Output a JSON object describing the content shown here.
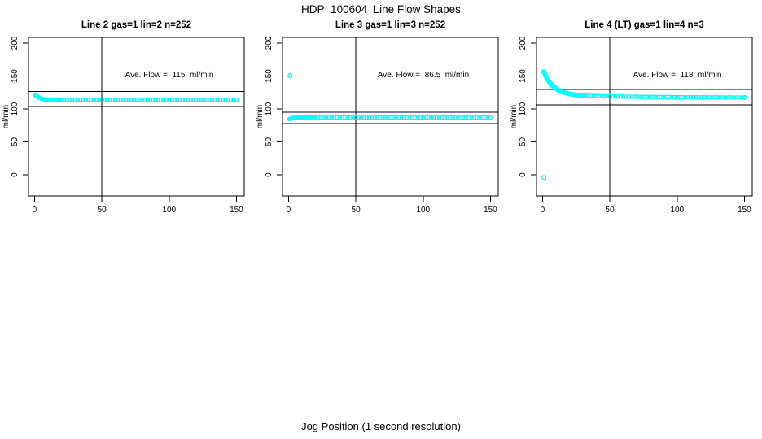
{
  "figure": {
    "title": "HDP_100604  Line Flow Shapes",
    "xlabel": "Jog Position (1 second resolution)",
    "background_color": "#ffffff",
    "axis_color": "#000000",
    "point_color": "#00ffff"
  },
  "chart_data": [
    {
      "type": "scatter",
      "title": "Line 2 gas=1 lin=2 n=252",
      "annotation": "Ave. Flow =  115  ml/min",
      "ave_flow": 115,
      "ylabel": "ml/min",
      "xticks": [
        0,
        50,
        100,
        150
      ],
      "yticks": [
        0,
        50,
        100,
        150,
        200
      ],
      "xlim": [
        -4.5,
        155.8
      ],
      "ylim": [
        -32,
        208.6
      ],
      "vline_x": 50,
      "hlines": [
        126.5,
        103.5
      ],
      "annotation_pos": {
        "x": 100,
        "y": 150
      },
      "points": [
        [
          0.5,
          120.5
        ],
        [
          1,
          119.8
        ],
        [
          1.5,
          119.2
        ],
        [
          2,
          118.7
        ],
        [
          2.5,
          118.2
        ],
        [
          3,
          117.6
        ],
        [
          3.5,
          117.1
        ],
        [
          4,
          116.6
        ],
        [
          4.5,
          116.2
        ],
        [
          5,
          115.8
        ],
        [
          5.5,
          115.4
        ],
        [
          6,
          115.1
        ],
        [
          6.5,
          114.9
        ],
        [
          7,
          114.7
        ],
        [
          7.5,
          114.5
        ],
        [
          8,
          114.4
        ],
        [
          9,
          114.3
        ],
        [
          10,
          114.2
        ],
        [
          11,
          114.1
        ],
        [
          12,
          114
        ],
        [
          13,
          114.1
        ],
        [
          14,
          113.9
        ],
        [
          15,
          114
        ],
        [
          16,
          114.1
        ],
        [
          17,
          113.9
        ],
        [
          18,
          114
        ],
        [
          19,
          114.1
        ],
        [
          20,
          113.9
        ],
        [
          22,
          114
        ],
        [
          24,
          114.1
        ],
        [
          26,
          113.9
        ],
        [
          28,
          114
        ],
        [
          30,
          114.1
        ],
        [
          32,
          113.9
        ],
        [
          34,
          114
        ],
        [
          36,
          114.1
        ],
        [
          38,
          113.9
        ],
        [
          40,
          114
        ],
        [
          42,
          114.1
        ],
        [
          44,
          113.9
        ],
        [
          46,
          114
        ],
        [
          48,
          114.1
        ],
        [
          50,
          113.9
        ],
        [
          52,
          114
        ],
        [
          54,
          114.1
        ],
        [
          56,
          113.9
        ],
        [
          58,
          114
        ],
        [
          60,
          114.1
        ],
        [
          62,
          113.9
        ],
        [
          64,
          114
        ],
        [
          66,
          114.1
        ],
        [
          68,
          113.9
        ],
        [
          70,
          114
        ],
        [
          72,
          114.1
        ],
        [
          74,
          113.9
        ],
        [
          76,
          114
        ],
        [
          78,
          114.1
        ],
        [
          80,
          113.9
        ],
        [
          82,
          114
        ],
        [
          84,
          114.1
        ],
        [
          86,
          113.9
        ],
        [
          88,
          114
        ],
        [
          90,
          114.1
        ],
        [
          92,
          113.9
        ],
        [
          94,
          114
        ],
        [
          96,
          114.1
        ],
        [
          98,
          113.9
        ],
        [
          100,
          114
        ],
        [
          102,
          114.1
        ],
        [
          104,
          113.9
        ],
        [
          106,
          114
        ],
        [
          108,
          114.1
        ],
        [
          110,
          113.9
        ],
        [
          112,
          114
        ],
        [
          114,
          114.1
        ],
        [
          116,
          113.9
        ],
        [
          118,
          114
        ],
        [
          120,
          114.1
        ],
        [
          122,
          113.9
        ],
        [
          124,
          114
        ],
        [
          126,
          114.1
        ],
        [
          128,
          113.9
        ],
        [
          130,
          114
        ],
        [
          132,
          114.1
        ],
        [
          134,
          113.9
        ],
        [
          136,
          114
        ],
        [
          138,
          114.1
        ],
        [
          140,
          113.9
        ],
        [
          142,
          114
        ],
        [
          144,
          114.1
        ],
        [
          146,
          113.9
        ],
        [
          148,
          114
        ],
        [
          150,
          114
        ]
      ],
      "outliers": []
    },
    {
      "type": "scatter",
      "title": "Line 3 gas=1 lin=3 n=252",
      "annotation": "Ave. Flow =  86.5  ml/min",
      "ave_flow": 86.5,
      "ylabel": "ml/min",
      "xticks": [
        0,
        50,
        100,
        150
      ],
      "yticks": [
        0,
        50,
        100,
        150,
        200
      ],
      "xlim": [
        -4.5,
        155.8
      ],
      "ylim": [
        -32,
        208.6
      ],
      "vline_x": 50,
      "hlines": [
        95.2,
        77.9
      ],
      "annotation_pos": {
        "x": 100,
        "y": 150
      },
      "points": [
        [
          0.5,
          84.6
        ],
        [
          1,
          85.2
        ],
        [
          1.5,
          84.9
        ],
        [
          2,
          85.8
        ],
        [
          2.5,
          86.3
        ],
        [
          3,
          86.6
        ],
        [
          3.5,
          86.8
        ],
        [
          4,
          86.9
        ],
        [
          5,
          87
        ],
        [
          6,
          87.1
        ],
        [
          7,
          86.9
        ],
        [
          8,
          87
        ],
        [
          9,
          87.1
        ],
        [
          10,
          86.9
        ],
        [
          11,
          87
        ],
        [
          12,
          87.1
        ],
        [
          13,
          86.9
        ],
        [
          14,
          87
        ],
        [
          15,
          87.1
        ],
        [
          16,
          86.9
        ],
        [
          17,
          87
        ],
        [
          18,
          87.1
        ],
        [
          19,
          86.9
        ],
        [
          20,
          87
        ],
        [
          22,
          87
        ],
        [
          24,
          87.1
        ],
        [
          26,
          86.9
        ],
        [
          28,
          87
        ],
        [
          30,
          87.1
        ],
        [
          32,
          86.9
        ],
        [
          34,
          87
        ],
        [
          36,
          87.1
        ],
        [
          38,
          86.9
        ],
        [
          40,
          87
        ],
        [
          42,
          87.1
        ],
        [
          44,
          86.9
        ],
        [
          46,
          87
        ],
        [
          48,
          87.1
        ],
        [
          50,
          86.9
        ],
        [
          52,
          87
        ],
        [
          54,
          87.1
        ],
        [
          56,
          86.9
        ],
        [
          58,
          87
        ],
        [
          60,
          87.1
        ],
        [
          62,
          86.9
        ],
        [
          64,
          87
        ],
        [
          66,
          87.1
        ],
        [
          68,
          86.9
        ],
        [
          70,
          87
        ],
        [
          72,
          87.1
        ],
        [
          74,
          86.9
        ],
        [
          76,
          87
        ],
        [
          78,
          87.1
        ],
        [
          80,
          86.9
        ],
        [
          82,
          87
        ],
        [
          84,
          87.1
        ],
        [
          86,
          86.9
        ],
        [
          88,
          87
        ],
        [
          90,
          87.1
        ],
        [
          92,
          86.9
        ],
        [
          94,
          87
        ],
        [
          96,
          87.1
        ],
        [
          98,
          86.9
        ],
        [
          100,
          87
        ],
        [
          102,
          87.1
        ],
        [
          104,
          86.9
        ],
        [
          106,
          87
        ],
        [
          108,
          87.1
        ],
        [
          110,
          86.9
        ],
        [
          112,
          87
        ],
        [
          114,
          87.1
        ],
        [
          116,
          86.9
        ],
        [
          118,
          87
        ],
        [
          120,
          87.1
        ],
        [
          122,
          86.9
        ],
        [
          124,
          87
        ],
        [
          126,
          87.1
        ],
        [
          128,
          86.9
        ],
        [
          130,
          87
        ],
        [
          132,
          87.1
        ],
        [
          134,
          86.9
        ],
        [
          136,
          87
        ],
        [
          138,
          87.1
        ],
        [
          140,
          86.9
        ],
        [
          142,
          87
        ],
        [
          144,
          87.1
        ],
        [
          146,
          86.9
        ],
        [
          148,
          87
        ],
        [
          150,
          87
        ]
      ],
      "outliers": [
        [
          1,
          150.5
        ]
      ]
    },
    {
      "type": "scatter",
      "title": "Line 4 (LT) gas=1 lin=4 n=3",
      "annotation": "Ave. Flow =  118  ml/min",
      "ave_flow": 118,
      "ylabel": "ml/min",
      "xticks": [
        0,
        50,
        100,
        150
      ],
      "yticks": [
        0,
        50,
        100,
        150,
        200
      ],
      "xlim": [
        -4.5,
        155.8
      ],
      "ylim": [
        -32,
        208.6
      ],
      "vline_x": 50,
      "hlines": [
        129.8,
        106.2
      ],
      "annotation_pos": {
        "x": 100,
        "y": 150
      },
      "points": [
        [
          0.5,
          156.2
        ],
        [
          1,
          155.5
        ],
        [
          1.5,
          154.3
        ],
        [
          2,
          150.9
        ],
        [
          2.5,
          148.8
        ],
        [
          3,
          146.9
        ],
        [
          3.5,
          145.1
        ],
        [
          4,
          143.4
        ],
        [
          4.5,
          141.8
        ],
        [
          5,
          140.4
        ],
        [
          5.5,
          139
        ],
        [
          6,
          137.8
        ],
        [
          6.5,
          136.6
        ],
        [
          7,
          135.5
        ],
        [
          7.5,
          134.5
        ],
        [
          8,
          133.5
        ],
        [
          8.5,
          132.6
        ],
        [
          9,
          131.8
        ],
        [
          9.5,
          131
        ],
        [
          10,
          130.3
        ],
        [
          11,
          129
        ],
        [
          12,
          127.8
        ],
        [
          13,
          126.8
        ],
        [
          14,
          125.9
        ],
        [
          15,
          125.2
        ],
        [
          16,
          124.5
        ],
        [
          17,
          123.9
        ],
        [
          18,
          123.4
        ],
        [
          19,
          122.9
        ],
        [
          20,
          122.5
        ],
        [
          21,
          122.2
        ],
        [
          22,
          121.9
        ],
        [
          23,
          121.6
        ],
        [
          24,
          121.4
        ],
        [
          25,
          121.1
        ],
        [
          26,
          120.9
        ],
        [
          27,
          120.8
        ],
        [
          28,
          120.6
        ],
        [
          29,
          120.5
        ],
        [
          30,
          120.3
        ],
        [
          32,
          120.1
        ],
        [
          34,
          119.9
        ],
        [
          36,
          119.8
        ],
        [
          38,
          119.6
        ],
        [
          40,
          119.5
        ],
        [
          42,
          119.4
        ],
        [
          44,
          119.2
        ],
        [
          46,
          119.1
        ],
        [
          48,
          119.1
        ],
        [
          50,
          119
        ],
        [
          52,
          118.9
        ],
        [
          54,
          118.9
        ],
        [
          56,
          118.8
        ],
        [
          58,
          118.7
        ],
        [
          60,
          118.7
        ],
        [
          62,
          118.6
        ],
        [
          64,
          118.6
        ],
        [
          66,
          118.5
        ],
        [
          68,
          118.5
        ],
        [
          70,
          118.4
        ],
        [
          72,
          118.4
        ],
        [
          74,
          118.3
        ],
        [
          76,
          118.3
        ],
        [
          78,
          118.2
        ],
        [
          80,
          118.2
        ],
        [
          82,
          118.2
        ],
        [
          84,
          118.1
        ],
        [
          86,
          118.1
        ],
        [
          88,
          118.1
        ],
        [
          90,
          118
        ],
        [
          92,
          118
        ],
        [
          94,
          118
        ],
        [
          96,
          117.9
        ],
        [
          98,
          117.9
        ],
        [
          100,
          117.9
        ],
        [
          102,
          117.8
        ],
        [
          104,
          117.8
        ],
        [
          106,
          117.8
        ],
        [
          108,
          117.8
        ],
        [
          110,
          117.7
        ],
        [
          112,
          117.7
        ],
        [
          114,
          117.7
        ],
        [
          116,
          117.7
        ],
        [
          118,
          117.6
        ],
        [
          120,
          117.6
        ],
        [
          122,
          117.6
        ],
        [
          124,
          117.6
        ],
        [
          126,
          117.5
        ],
        [
          128,
          117.5
        ],
        [
          130,
          117.5
        ],
        [
          132,
          117.5
        ],
        [
          134,
          117.5
        ],
        [
          136,
          117.4
        ],
        [
          138,
          117.4
        ],
        [
          140,
          117.4
        ],
        [
          142,
          117.4
        ],
        [
          144,
          117.4
        ],
        [
          146,
          117.4
        ],
        [
          148,
          117.3
        ],
        [
          150,
          117.3
        ],
        [
          1,
          157
        ],
        [
          2,
          152.5
        ],
        [
          3,
          148.5
        ],
        [
          4,
          145
        ],
        [
          5,
          142
        ],
        [
          6,
          139.3
        ],
        [
          7,
          137
        ],
        [
          8,
          135
        ],
        [
          9,
          133.2
        ],
        [
          10,
          131.6
        ],
        [
          11,
          130.2
        ],
        [
          12,
          129
        ],
        [
          13,
          128
        ],
        [
          14,
          127
        ],
        [
          15,
          126.2
        ],
        [
          16,
          125.4
        ],
        [
          17,
          124.8
        ],
        [
          18,
          124.2
        ],
        [
          19,
          123.7
        ],
        [
          20,
          123.2
        ],
        [
          22,
          122.5
        ],
        [
          24,
          122
        ],
        [
          26,
          121.5
        ],
        [
          28,
          121.2
        ],
        [
          30,
          120.9
        ],
        [
          34,
          120.4
        ],
        [
          38,
          120.1
        ],
        [
          42,
          119.8
        ],
        [
          46,
          119.6
        ],
        [
          50,
          119.4
        ],
        [
          60,
          119.1
        ],
        [
          70,
          118.8
        ],
        [
          80,
          118.6
        ],
        [
          90,
          118.4
        ],
        [
          100,
          118.2
        ],
        [
          110,
          118.1
        ],
        [
          120,
          118
        ],
        [
          130,
          117.9
        ],
        [
          140,
          117.8
        ],
        [
          150,
          117.7
        ]
      ],
      "outliers": [
        [
          1,
          -4
        ]
      ]
    }
  ]
}
